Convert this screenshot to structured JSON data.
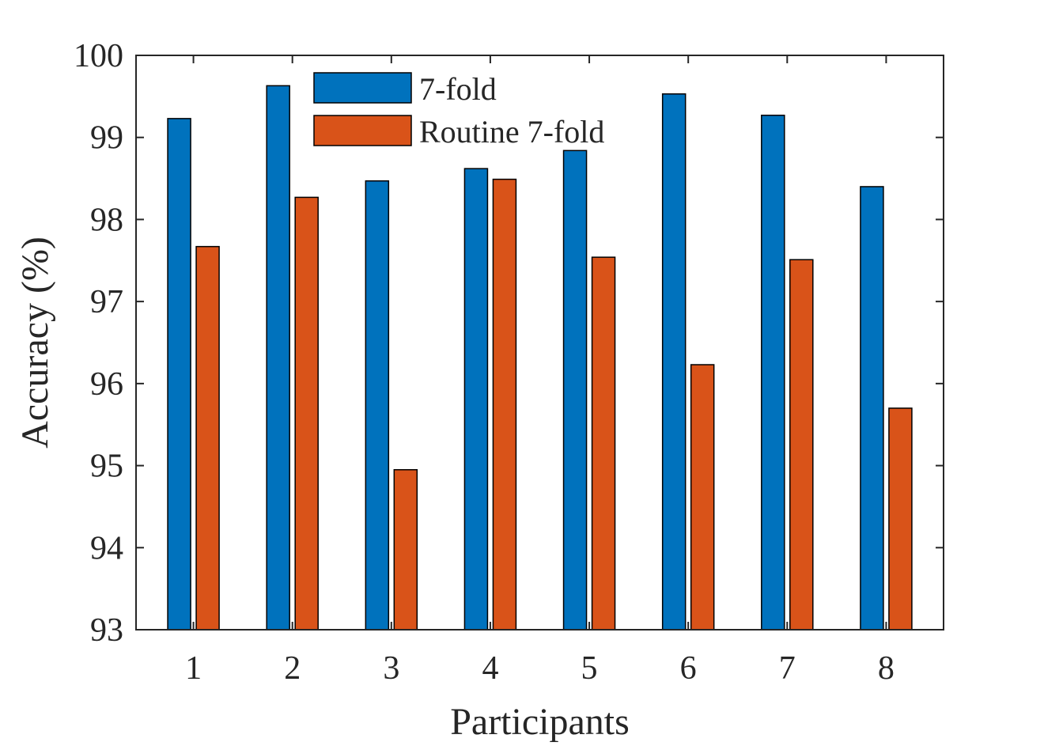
{
  "chart_data": {
    "type": "bar",
    "categories": [
      "1",
      "2",
      "3",
      "4",
      "5",
      "6",
      "7",
      "8"
    ],
    "series": [
      {
        "name": "7-fold",
        "color": "#0072BD",
        "values": [
          99.23,
          99.63,
          98.47,
          98.62,
          98.84,
          99.53,
          99.27,
          98.4
        ]
      },
      {
        "name": "Routine 7-fold",
        "color": "#D95319",
        "values": [
          97.67,
          98.27,
          94.95,
          98.49,
          97.54,
          96.23,
          97.51,
          95.7
        ]
      }
    ],
    "title": "",
    "xlabel": "Participants",
    "ylabel": "Accuracy (%)",
    "ylim": [
      93,
      100
    ],
    "yticks": [
      "93",
      "94",
      "95",
      "96",
      "97",
      "98",
      "99",
      "100"
    ],
    "grid": false,
    "legend_position": "top-left"
  }
}
